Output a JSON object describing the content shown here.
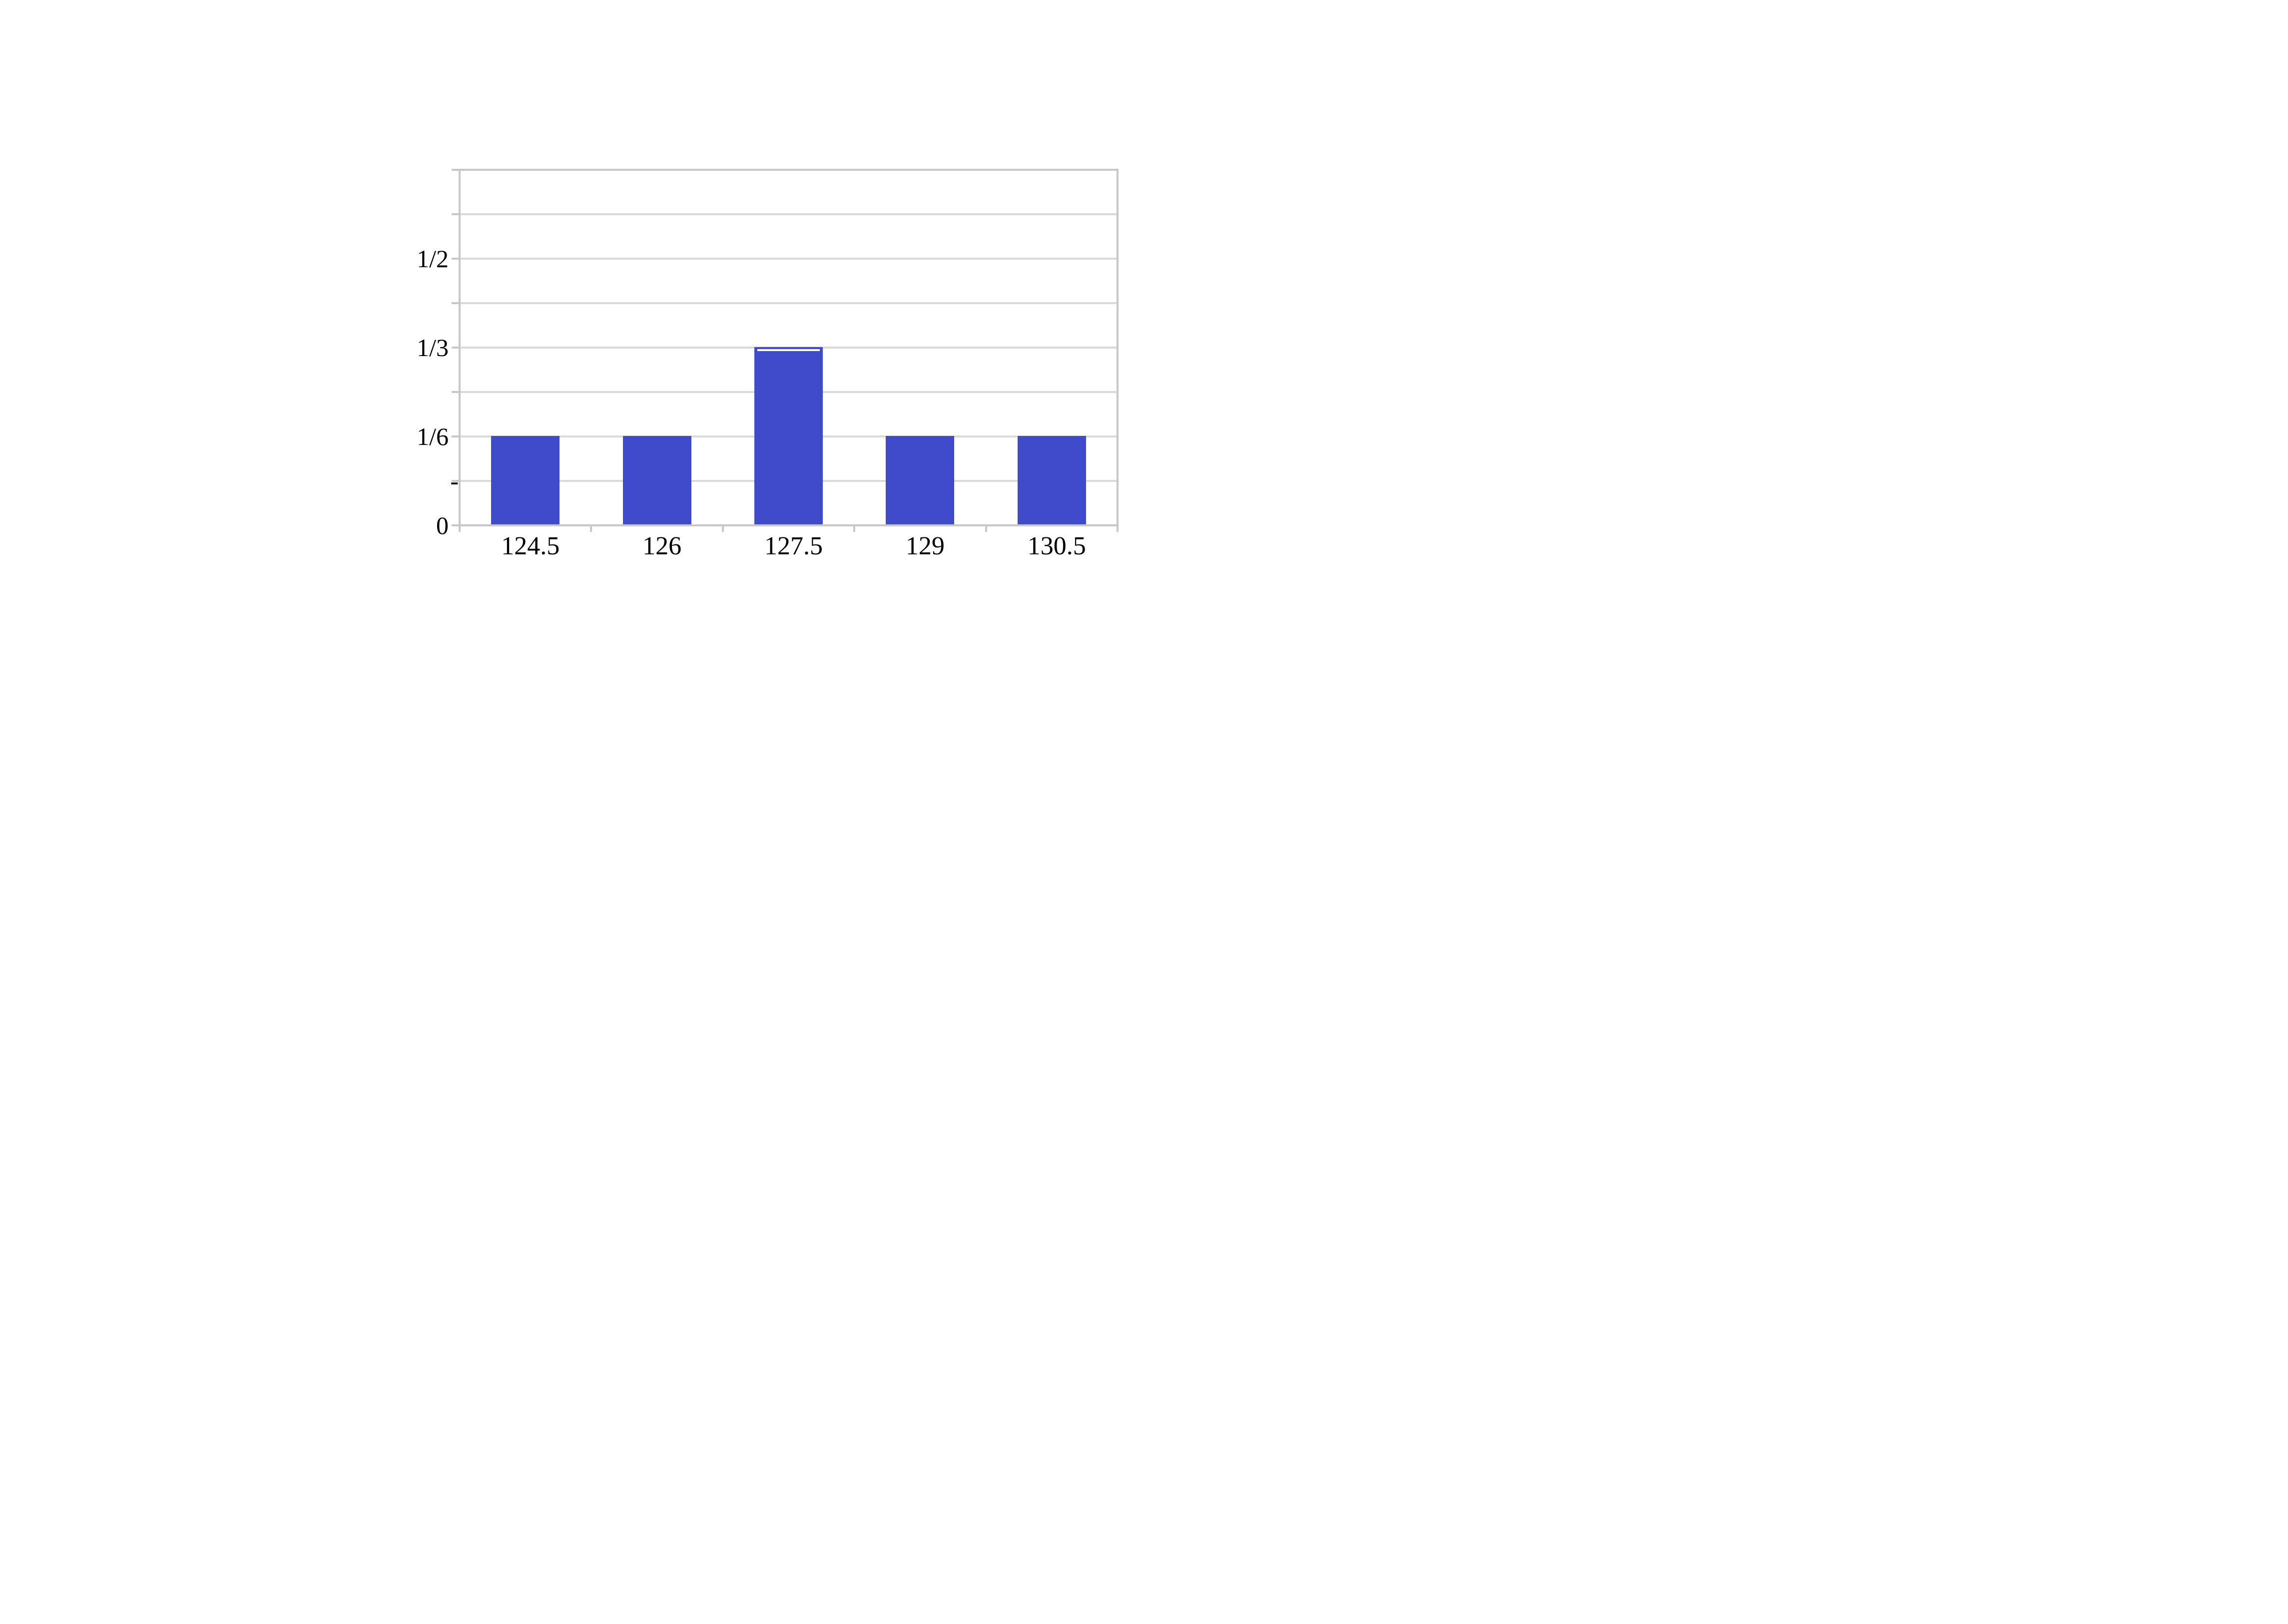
{
  "page": {
    "background": "#FFFFFF"
  },
  "chart_data": {
    "type": "bar",
    "title": "",
    "xlabel": "",
    "ylabel": "",
    "categories": [
      "124.5",
      "126",
      "127.5",
      "129",
      "130.5"
    ],
    "values": [
      0.166667,
      0.166667,
      0.333333,
      0.166667,
      0.166667
    ],
    "value_labels": [
      "1/6",
      "1/6",
      "1/3",
      "1/6",
      "1/6"
    ],
    "ylim": [
      0,
      0.666667
    ],
    "gridline_interval": 0.083333,
    "grid": true,
    "legend_position": "none",
    "ytick_labels": [
      {
        "value": 0,
        "label": "0"
      },
      {
        "value": 0.083333,
        "label": "-"
      },
      {
        "value": 0.166667,
        "label": "1/6"
      },
      {
        "value": 0.333333,
        "label": "1/3"
      },
      {
        "value": 0.5,
        "label": "1/2"
      }
    ],
    "tallest_bar_index": 2,
    "colors": {
      "bar": "#3F4BCA",
      "gridline": "#DADADA",
      "axis": "#C8C8C8",
      "text": "#000000",
      "background": "#FFFFFF",
      "bar_top_line": "#FFFFFF"
    }
  }
}
